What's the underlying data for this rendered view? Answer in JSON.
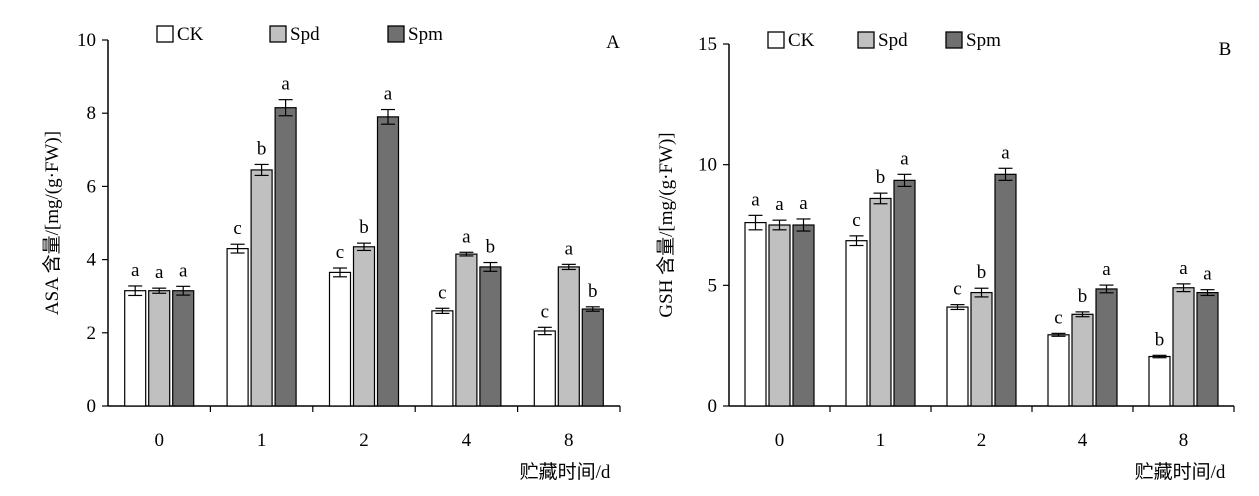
{
  "figure": {
    "panels": [
      {
        "panel_label": "A",
        "ylabel": "ASA 含量/[mg/(g·FW)]",
        "xlabel": "贮藏时间/d",
        "legend_position": "top"
      },
      {
        "panel_label": "B",
        "ylabel": "GSH 含量/[mg/(g·FW)]",
        "xlabel": "贮藏时间/d",
        "legend_position": "top"
      }
    ],
    "colors": {
      "CK": "#ffffff",
      "Spd": "#c0c0c0",
      "Spm": "#707070"
    }
  },
  "chart_data": [
    {
      "type": "bar",
      "title": "",
      "xlabel": "贮藏时间/d",
      "ylabel": "ASA 含量/[mg/(g·FW)]",
      "categories": [
        "0",
        "1",
        "2",
        "4",
        "8"
      ],
      "ylim": [
        0,
        10
      ],
      "yticks": [
        "0",
        "2",
        "4",
        "6",
        "8",
        "10"
      ],
      "grid": false,
      "series": [
        {
          "name": "CK",
          "values": [
            3.15,
            4.3,
            3.65,
            2.6,
            2.05
          ],
          "errors": [
            0.13,
            0.12,
            0.12,
            0.07,
            0.1
          ],
          "letters": [
            "a",
            "c",
            "c",
            "c",
            "c"
          ]
        },
        {
          "name": "Spd",
          "values": [
            3.15,
            6.45,
            4.35,
            4.15,
            3.8
          ],
          "errors": [
            0.07,
            0.15,
            0.1,
            0.05,
            0.07
          ],
          "letters": [
            "a",
            "b",
            "b",
            "a",
            "a"
          ]
        },
        {
          "name": "Spm",
          "values": [
            3.15,
            8.15,
            7.9,
            3.8,
            2.65
          ],
          "errors": [
            0.12,
            0.22,
            0.2,
            0.12,
            0.06
          ],
          "letters": [
            "a",
            "a",
            "a",
            "b",
            "b"
          ]
        }
      ]
    },
    {
      "type": "bar",
      "title": "",
      "xlabel": "贮藏时间/d",
      "ylabel": "GSH 含量/[mg/(g·FW)]",
      "categories": [
        "0",
        "1",
        "2",
        "4",
        "8"
      ],
      "ylim": [
        0,
        15
      ],
      "yticks": [
        "0",
        "5",
        "10",
        "15"
      ],
      "grid": false,
      "series": [
        {
          "name": "CK",
          "values": [
            7.6,
            6.85,
            4.1,
            2.95,
            2.05
          ],
          "errors": [
            0.3,
            0.2,
            0.1,
            0.06,
            0.05
          ],
          "letters": [
            "a",
            "c",
            "c",
            "c",
            "b"
          ]
        },
        {
          "name": "Spd",
          "values": [
            7.5,
            8.6,
            4.7,
            3.8,
            4.9
          ],
          "errors": [
            0.2,
            0.22,
            0.18,
            0.1,
            0.16
          ],
          "letters": [
            "a",
            "b",
            "b",
            "b",
            "a"
          ]
        },
        {
          "name": "Spm",
          "values": [
            7.5,
            9.35,
            9.6,
            4.85,
            4.7
          ],
          "errors": [
            0.25,
            0.25,
            0.25,
            0.16,
            0.12
          ],
          "letters": [
            "a",
            "a",
            "a",
            "a",
            "a"
          ]
        }
      ]
    }
  ]
}
